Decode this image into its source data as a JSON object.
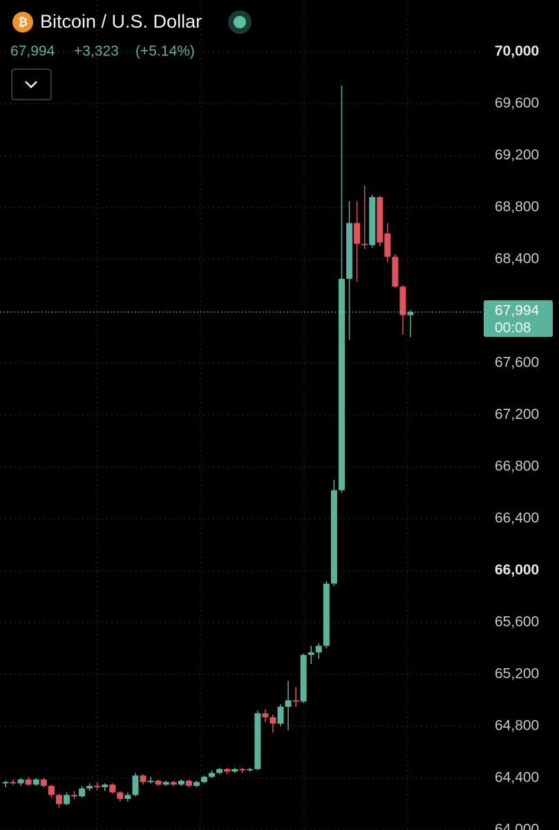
{
  "header": {
    "symbol": "Bitcoin / U.S. Dollar",
    "price": "67,994",
    "change": "+3,323",
    "change_pct": "(+5.14%)"
  },
  "chart_data": {
    "type": "candlestick",
    "up_color": "#5bb39b",
    "down_color": "#e0535c",
    "grid": true,
    "ylim": [
      64000,
      70400
    ],
    "yticks": [
      {
        "value": 64000,
        "label": "64,000"
      },
      {
        "value": 64400,
        "label": "64,400"
      },
      {
        "value": 64800,
        "label": "64,800"
      },
      {
        "value": 65200,
        "label": "65,200"
      },
      {
        "value": 65600,
        "label": "65,600"
      },
      {
        "value": 66000,
        "label": "66,000"
      },
      {
        "value": 66400,
        "label": "66,400"
      },
      {
        "value": 66800,
        "label": "66,800"
      },
      {
        "value": 67200,
        "label": "67,200"
      },
      {
        "value": 67600,
        "label": "67,600"
      },
      {
        "value": 68400,
        "label": "68,400"
      },
      {
        "value": 68800,
        "label": "68,800"
      },
      {
        "value": 69200,
        "label": "69,200"
      },
      {
        "value": 69600,
        "label": "69,600"
      },
      {
        "value": 70000,
        "label": "70,000"
      }
    ],
    "last_price": {
      "value": 67994,
      "label": "67,994"
    },
    "countdown": "00:08",
    "open": [
      64360,
      64370,
      64360,
      64390,
      64350,
      64390,
      64340,
      64270,
      64200,
      64270,
      64260,
      64320,
      64340,
      64330,
      64350,
      64290,
      64240,
      64270,
      64420,
      64370,
      64380,
      64350,
      64370,
      64350,
      64380,
      64340,
      64370,
      64410,
      64440,
      64470,
      64450,
      64470,
      64460,
      64470,
      64900,
      64870,
      64820,
      64950,
      65000,
      64990,
      65350,
      65370,
      65420,
      65900,
      66620,
      68250,
      68680,
      68520,
      68510,
      68880,
      68600,
      68420,
      68190,
      67970
    ],
    "high": [
      64380,
      64390,
      64400,
      64410,
      64400,
      64400,
      64350,
      64280,
      64290,
      64300,
      64340,
      64360,
      64370,
      64360,
      64360,
      64300,
      64290,
      64440,
      64430,
      64410,
      64390,
      64380,
      64380,
      64390,
      64390,
      64380,
      64420,
      64460,
      64480,
      64480,
      64480,
      64480,
      64480,
      64920,
      64930,
      64890,
      64970,
      65150,
      65100,
      65360,
      65420,
      65440,
      65920,
      66700,
      69740,
      68850,
      68850,
      68970,
      68900,
      68890,
      68680,
      68440,
      68200,
      68010
    ],
    "low": [
      64330,
      64350,
      64340,
      64340,
      64340,
      64330,
      64250,
      64170,
      64190,
      64240,
      64250,
      64300,
      64310,
      64300,
      64280,
      64220,
      64220,
      64260,
      64350,
      64360,
      64340,
      64340,
      64340,
      64340,
      64330,
      64330,
      64360,
      64400,
      64430,
      64430,
      64440,
      64440,
      64450,
      64460,
      64830,
      64750,
      64800,
      64770,
      64950,
      64980,
      65280,
      65320,
      65400,
      65880,
      66600,
      67780,
      68230,
      68480,
      68490,
      68500,
      68380,
      68180,
      67820,
      67800
    ],
    "close": [
      64370,
      64360,
      64390,
      64350,
      64390,
      64340,
      64270,
      64200,
      64270,
      64260,
      64320,
      64340,
      64330,
      64350,
      64290,
      64240,
      64270,
      64420,
      64370,
      64380,
      64350,
      64370,
      64350,
      64380,
      64340,
      64370,
      64410,
      64440,
      64470,
      64450,
      64470,
      64460,
      64470,
      64900,
      64870,
      64820,
      64950,
      65000,
      64990,
      65350,
      65370,
      65420,
      65900,
      66620,
      68250,
      68680,
      68520,
      68510,
      68880,
      68530,
      68420,
      68190,
      67970,
      67994
    ]
  }
}
